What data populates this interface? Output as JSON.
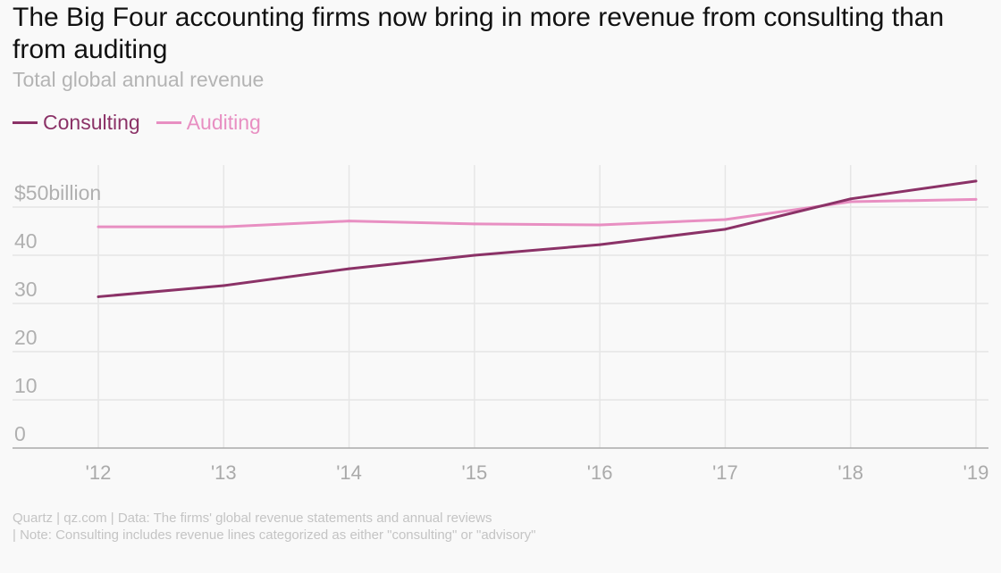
{
  "title": "The Big Four accounting firms now bring in more revenue from consulting than from auditing",
  "subtitle": "Total global annual revenue",
  "footer": {
    "line1": "Quartz | qz.com | Data: The firms' global revenue statements and annual reviews",
    "line2": "| Note: Consulting includes revenue lines categorized as either \"consulting\" or \"advisory\""
  },
  "chart_data": {
    "type": "line",
    "title": "The Big Four accounting firms now bring in more revenue from consulting than from auditing",
    "subtitle": "Total global annual revenue",
    "xlabel": "",
    "ylabel": "",
    "x": [
      "'12",
      "'13",
      "'14",
      "'15",
      "'16",
      "'17",
      "'18",
      "'19"
    ],
    "ylim": [
      0,
      50
    ],
    "yticks": [
      0,
      10,
      20,
      30,
      40,
      50
    ],
    "ytick_labels": [
      "0",
      "10",
      "20",
      "30",
      "40",
      "$50billion"
    ],
    "grid": true,
    "legend_position": "top-left",
    "series": [
      {
        "name": "Consulting",
        "color": "#8b3267",
        "values": [
          31.4,
          33.7,
          37.2,
          40.0,
          42.2,
          45.4,
          51.7,
          55.4
        ]
      },
      {
        "name": "Auditing",
        "color": "#e88fc2",
        "values": [
          45.9,
          45.9,
          47.1,
          46.5,
          46.3,
          47.4,
          51.1,
          51.6
        ]
      }
    ]
  }
}
